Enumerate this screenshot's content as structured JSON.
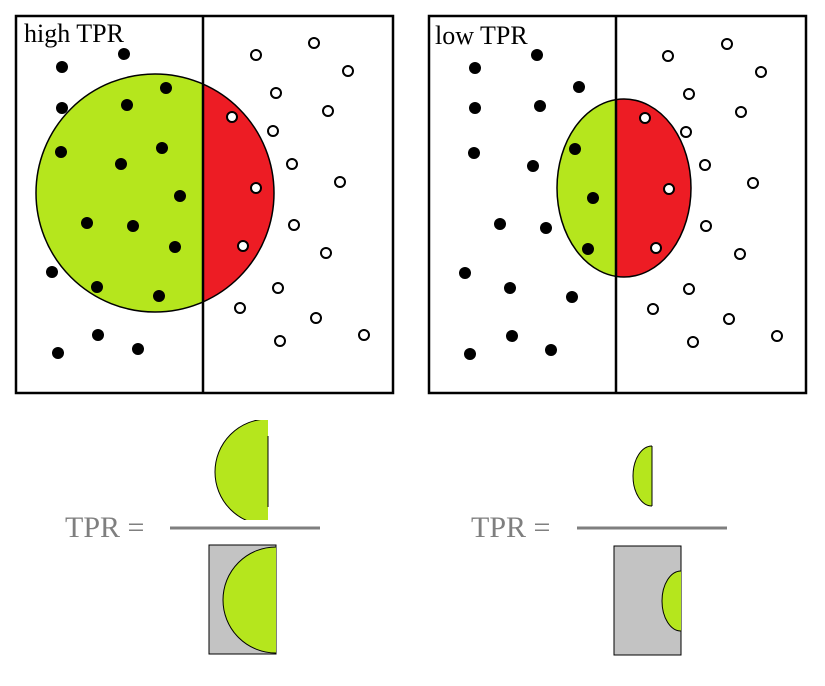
{
  "colors": {
    "positive_region": "#b5e61d",
    "negative_region": "#ed1c24",
    "denominator_box": "#c3c3c3",
    "equation_text": "#7f7f7f",
    "outline": "#000000",
    "background": "#ffffff"
  },
  "panels": [
    {
      "title": "high TPR"
    },
    {
      "title": "low TPR"
    }
  ],
  "equations": [
    {
      "label": "TPR ="
    },
    {
      "label": "TPR ="
    }
  ]
}
